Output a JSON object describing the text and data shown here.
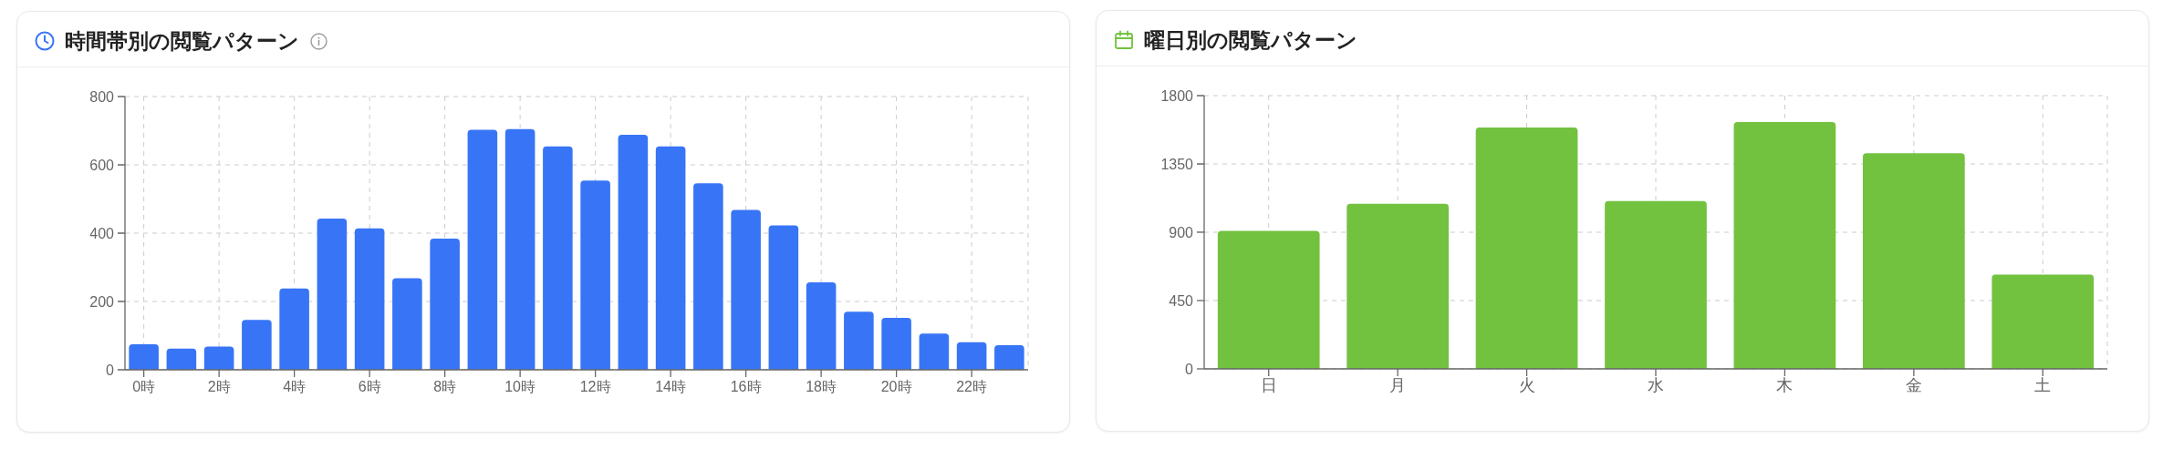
{
  "chart_data": [
    {
      "type": "bar",
      "title": "時間帯別の閲覧パターン",
      "categories": [
        "0時",
        null,
        "2時",
        null,
        "4時",
        null,
        "6時",
        null,
        "8時",
        null,
        "10時",
        null,
        "12時",
        null,
        "14時",
        null,
        "16時",
        null,
        "18時",
        null,
        "20時",
        null,
        "22時",
        null
      ],
      "values": [
        75,
        62,
        68,
        146,
        238,
        443,
        414,
        268,
        384,
        703,
        705,
        654,
        554,
        688,
        654,
        546,
        468,
        423,
        256,
        170,
        152,
        106,
        81,
        72
      ],
      "color": "#3875f6",
      "ylim": [
        0,
        800
      ],
      "yticks": [
        0,
        200,
        400,
        600,
        800
      ],
      "grid": true
    },
    {
      "type": "bar",
      "title": "曜日別の閲覧パターン",
      "categories": [
        "日",
        "月",
        "火",
        "水",
        "木",
        "金",
        "土"
      ],
      "values": [
        909,
        1087,
        1590,
        1106,
        1626,
        1421,
        621
      ],
      "color": "#72c240",
      "ylim": [
        0,
        1800
      ],
      "yticks": [
        0,
        450,
        900,
        1350,
        1800
      ],
      "grid": true
    }
  ]
}
